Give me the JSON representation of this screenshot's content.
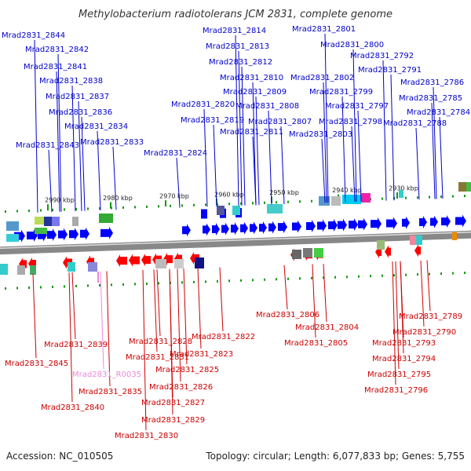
{
  "title": "Methylobacterium radiotolerans JCM 2831, complete genome",
  "footer": {
    "accession": "Accession: NC_010505",
    "summary": "Topology: circular; Length: 6,077,833 bp; Genes: 5,755"
  },
  "colors": {
    "forward_gene": "#0000ff",
    "reverse_gene": "#ff0000",
    "rna_gene": "#ee88dd",
    "backbone": "#888888",
    "tick": "#119911"
  },
  "kbp_labels": [
    "2990 kbp",
    "2980 kbp",
    "2970 kbp",
    "2960 kbp",
    "2950 kbp",
    "2940 kbp",
    "2930 kbp"
  ],
  "top_labels": [
    "Mrad2831_2844",
    "Mrad2831_2842",
    "Mrad2831_2841",
    "Mrad2831_2838",
    "Mrad2831_2837",
    "Mrad2831_2836",
    "Mrad2831_2834",
    "Mrad2831_2833",
    "Mrad2831_2843",
    "Mrad2831_2824",
    "Mrad2831_2820",
    "Mrad2831_2819",
    "Mrad2831_2814",
    "Mrad2831_2813",
    "Mrad2831_2812",
    "Mrad2831_2810",
    "Mrad2831_2809",
    "Mrad2831_2808",
    "Mrad2831_2807",
    "Mrad2831_2811",
    "Mrad2831_2801",
    "Mrad2831_2800",
    "Mrad2831_2792",
    "Mrad2831_2791",
    "Mrad2831_2802",
    "Mrad2831_2799",
    "Mrad2831_2797",
    "Mrad2831_2798",
    "Mrad2831_2803",
    "Mrad2831_2786",
    "Mrad2831_2785",
    "Mrad2831_2784",
    "Mrad2831_2788"
  ],
  "bottom_labels": [
    "Mrad2831_2822",
    "Mrad2831_2806",
    "Mrad2831_2804",
    "Mrad2831_2805",
    "Mrad2831_2839",
    "Mrad2831_2845",
    "Mrad2831_2828",
    "Mrad2831_2831",
    "Mrad2831_2823",
    "Mrad2831_2825",
    "Mrad2831_R0035",
    "Mrad2831_2835",
    "Mrad2831_2826",
    "Mrad2831_2827",
    "Mrad2831_2840",
    "Mrad2831_2829",
    "Mrad2831_2830",
    "Mrad2831_2789",
    "Mrad2831_2790",
    "Mrad2831_2793",
    "Mrad2831_2794",
    "Mrad2831_2795",
    "Mrad2831_2796"
  ]
}
